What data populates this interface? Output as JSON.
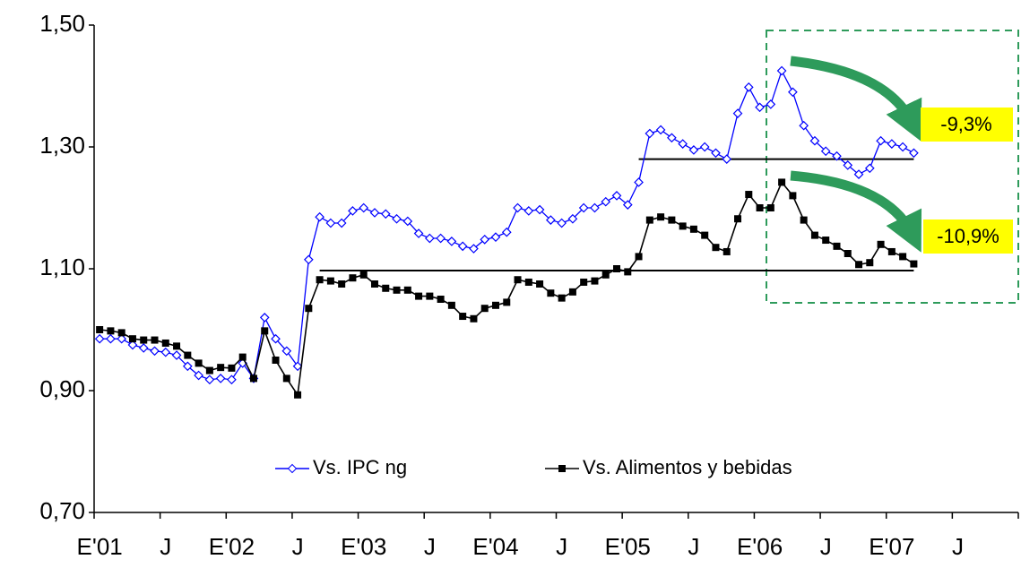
{
  "chart_data": {
    "type": "line",
    "categories": [
      "E'01",
      null,
      null,
      null,
      null,
      null,
      "J",
      null,
      null,
      null,
      null,
      null,
      "E'02",
      null,
      null,
      null,
      null,
      null,
      "J",
      null,
      null,
      null,
      null,
      null,
      "E'03",
      null,
      null,
      null,
      null,
      null,
      "J",
      null,
      null,
      null,
      null,
      null,
      "E'04",
      null,
      null,
      null,
      null,
      null,
      "J",
      null,
      null,
      null,
      null,
      null,
      "E'05",
      null,
      null,
      null,
      null,
      null,
      "J",
      null,
      null,
      null,
      null,
      null,
      "E'06",
      null,
      null,
      null,
      null,
      null,
      "J",
      null,
      null,
      null,
      null,
      null,
      "E'07",
      null,
      null,
      null,
      null,
      null,
      "J",
      null,
      null,
      null,
      null,
      null
    ],
    "series": [
      {
        "name": "Vs. IPC ng",
        "color": "#0000ff",
        "marker": "diamond",
        "values": [
          0.985,
          0.985,
          0.985,
          0.975,
          0.97,
          0.965,
          0.963,
          0.958,
          0.94,
          0.925,
          0.918,
          0.92,
          0.918,
          0.945,
          0.92,
          1.02,
          0.985,
          0.965,
          0.94,
          1.115,
          1.185,
          1.175,
          1.175,
          1.195,
          1.2,
          1.192,
          1.19,
          1.182,
          1.178,
          1.158,
          1.15,
          1.15,
          1.145,
          1.137,
          1.133,
          1.148,
          1.152,
          1.16,
          1.2,
          1.195,
          1.197,
          1.18,
          1.175,
          1.182,
          1.2,
          1.2,
          1.21,
          1.22,
          1.205,
          1.242,
          1.322,
          1.328,
          1.315,
          1.305,
          1.295,
          1.3,
          1.29,
          1.28,
          1.355,
          1.398,
          1.365,
          1.37,
          1.425,
          1.39,
          1.335,
          1.31,
          1.293,
          1.285,
          1.27,
          1.255,
          1.265,
          1.31,
          1.305,
          1.3,
          1.29,
          null,
          null,
          null,
          null,
          null,
          null,
          null,
          null,
          null
        ]
      },
      {
        "name": "Vs. Alimentos y bebidas",
        "color": "#000000",
        "marker": "square",
        "values": [
          1.0,
          0.998,
          0.995,
          0.985,
          0.983,
          0.983,
          0.978,
          0.973,
          0.958,
          0.945,
          0.933,
          0.938,
          0.937,
          0.955,
          0.92,
          0.998,
          0.95,
          0.92,
          0.893,
          1.035,
          1.082,
          1.08,
          1.075,
          1.085,
          1.09,
          1.075,
          1.068,
          1.065,
          1.065,
          1.055,
          1.055,
          1.05,
          1.04,
          1.022,
          1.018,
          1.035,
          1.04,
          1.045,
          1.082,
          1.078,
          1.075,
          1.06,
          1.052,
          1.062,
          1.078,
          1.08,
          1.09,
          1.1,
          1.095,
          1.12,
          1.18,
          1.185,
          1.18,
          1.17,
          1.165,
          1.155,
          1.135,
          1.128,
          1.182,
          1.222,
          1.2,
          1.2,
          1.242,
          1.22,
          1.18,
          1.155,
          1.147,
          1.137,
          1.125,
          1.107,
          1.11,
          1.14,
          1.128,
          1.12,
          1.108,
          null,
          null,
          null,
          null,
          null,
          null,
          null,
          null,
          null
        ]
      }
    ],
    "ylim": [
      0.7,
      1.5
    ],
    "yticks": [
      {
        "value": 0.7,
        "label": "0,70"
      },
      {
        "value": 0.9,
        "label": "0,90"
      },
      {
        "value": 1.1,
        "label": "1,10"
      },
      {
        "value": 1.3,
        "label": "1,30"
      },
      {
        "value": 1.5,
        "label": "1,50"
      }
    ],
    "reference_lines": [
      {
        "value": 1.28,
        "from": 49,
        "to": 74
      },
      {
        "value": 1.097,
        "from": 20,
        "to": 74
      }
    ],
    "annotations": [
      {
        "text": "-9,3%"
      },
      {
        "text": "-10,9%"
      }
    ],
    "legend": "bottom",
    "grid": false
  }
}
